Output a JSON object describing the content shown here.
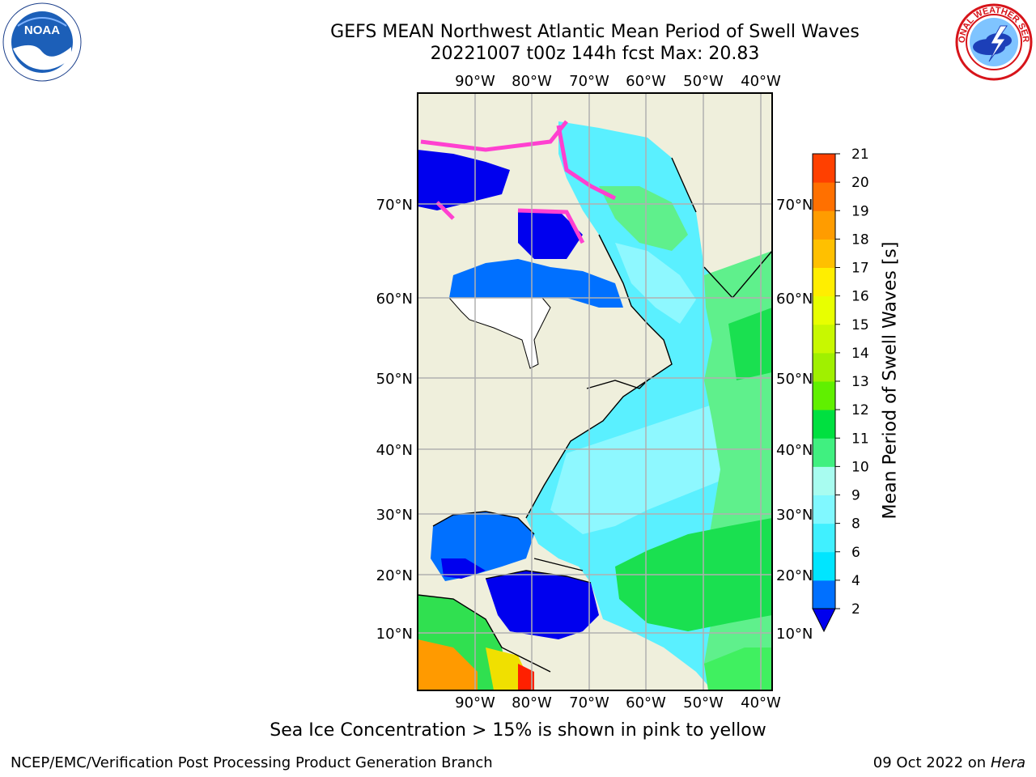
{
  "title": {
    "line1": "GEFS MEAN Northwest Atlantic Mean Period of Swell Waves",
    "line2": "20221007 t00z 144h fcst   Max: 20.83"
  },
  "logos": {
    "left": "noaa-logo",
    "left_text": "NOAA",
    "right": "national-weather-service-logo",
    "right_text": "NATIONAL WEATHER SERVICE"
  },
  "map": {
    "lon_labels": [
      "90°W",
      "80°W",
      "70°W",
      "60°W",
      "50°W",
      "40°W"
    ],
    "lat_labels": [
      "70°N",
      "60°N",
      "50°N",
      "40°N",
      "30°N",
      "20°N",
      "10°N"
    ],
    "land_color": "#efefdc"
  },
  "colorbar": {
    "label": "Mean Period of Swell Waves [s]",
    "ticks": [
      "2",
      "4",
      "6",
      "8",
      "9",
      "10",
      "11",
      "12",
      "13",
      "14",
      "15",
      "16",
      "17",
      "18",
      "19",
      "20",
      "21"
    ],
    "colors": [
      "#0070ff",
      "#00e5ff",
      "#40f0ff",
      "#80f8ff",
      "#a8fcf0",
      "#40f080",
      "#00e040",
      "#60f000",
      "#a0f000",
      "#c8f800",
      "#e8ff00",
      "#ffee00",
      "#ffc000",
      "#ff9c00",
      "#ff7000",
      "#ff4000",
      "#ff0000"
    ],
    "under_color": "#0000ee"
  },
  "note": "Sea Ice Concentration > 15% is shown in pink to yellow",
  "footer": {
    "left": "NCEP/EMC/Verification Post Processing Product Generation Branch",
    "right_prefix": "09 Oct 2022 on ",
    "right_host": "Hera"
  }
}
